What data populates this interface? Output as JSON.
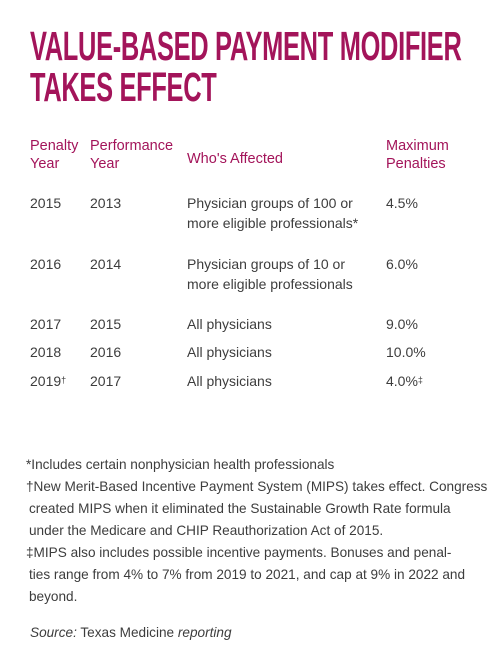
{
  "title": {
    "line1": "VALUE-BASED PAYMENT MODIFIER",
    "line2": "TAKES EFFECT"
  },
  "table": {
    "headers": {
      "penalty_year": [
        "Penalty",
        "Year"
      ],
      "performance_year": [
        "Performance",
        "Year"
      ],
      "whos_affected": "Who's Affected",
      "maximum_penalties": [
        "Maximum",
        "Penalties"
      ]
    },
    "rows": [
      {
        "penalty_year": "2015",
        "penalty_mark": "",
        "performance_year": "2013",
        "affected": [
          "Physician groups of 100 or",
          "more eligible professionals*"
        ],
        "penalty": "4.5%",
        "penalty_suffix": ""
      },
      {
        "penalty_year": "2016",
        "penalty_mark": "",
        "performance_year": "2014",
        "affected": [
          "Physician groups of 10 or",
          "more eligible professionals"
        ],
        "penalty": "6.0%",
        "penalty_suffix": ""
      },
      {
        "penalty_year": "2017",
        "penalty_mark": "",
        "performance_year": "2015",
        "affected": [
          "All physicians"
        ],
        "penalty": "9.0%",
        "penalty_suffix": ""
      },
      {
        "penalty_year": "2018",
        "penalty_mark": "",
        "performance_year": "2016",
        "affected": [
          "All physicians"
        ],
        "penalty": "10.0%",
        "penalty_suffix": ""
      },
      {
        "penalty_year": "2019",
        "penalty_mark": "†",
        "performance_year": "2017",
        "affected": [
          "All physicians"
        ],
        "penalty": "4.0%",
        "penalty_suffix": "‡"
      }
    ]
  },
  "notes": {
    "n1": "*Includes certain nonphysician health professionals",
    "n2_lines": [
      "†New Merit-Based Incentive Payment System (MIPS) takes effect. Congress",
      "created MIPS when it eliminated the Sustainable Growth Rate formula",
      "under the Medicare and CHIP Reauthorization Act of 2015."
    ],
    "n3_lines": [
      "‡MIPS also includes possible incentive payments. Bonuses and penal-",
      "ties range from 4% to 7% from 2019 to 2021, and cap at 9% in 2022 and",
      "beyond."
    ]
  },
  "source": {
    "prefix": "Source:",
    "name": "Texas Medicine",
    "suffix": "reporting"
  },
  "colors": {
    "accent": "#a3145a",
    "text": "#3d3d3d"
  }
}
